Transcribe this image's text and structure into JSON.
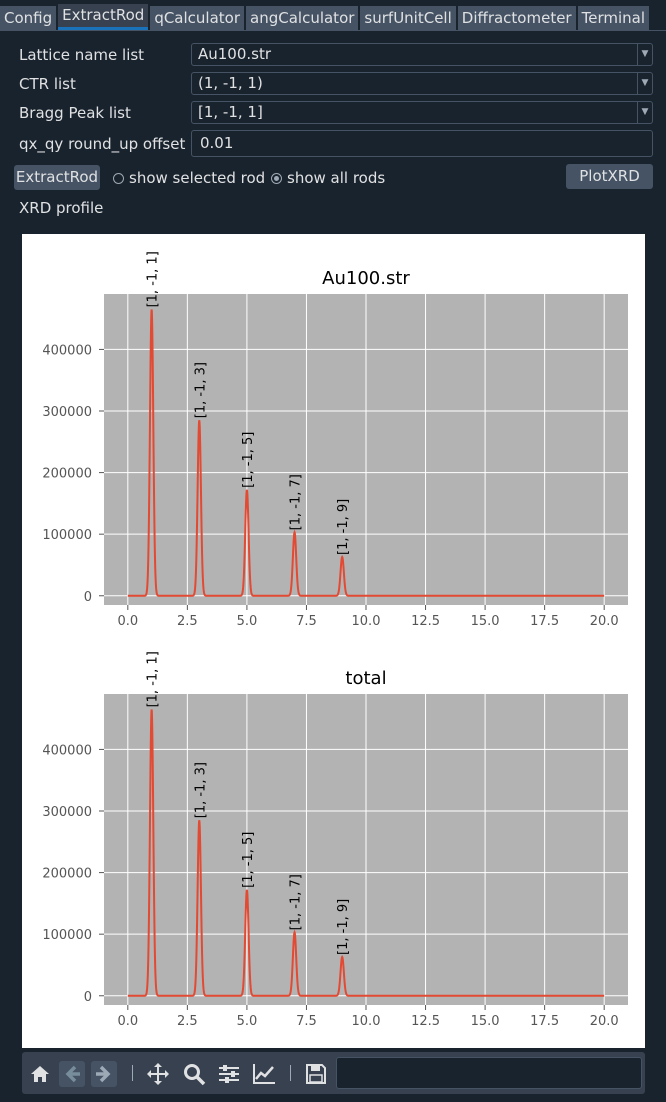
{
  "tabs": [
    "Config",
    "ExtractRod",
    "qCalculator",
    "angCalculator",
    "surfUnitCell",
    "Diffractometer",
    "Terminal"
  ],
  "active_tab": "ExtractRod",
  "form": {
    "lattice_label": "Lattice name list",
    "lattice_value": "Au100.str",
    "ctr_label": "CTR  list",
    "ctr_value": "(1, -1, 1)",
    "bragg_label": "Bragg Peak list",
    "bragg_value": "[1, -1, 1]",
    "offset_label": "qx_qy round_up offset",
    "offset_value": "0.01"
  },
  "controls": {
    "extract_button": "ExtractRod",
    "radio_selected": "show selected rod",
    "radio_all": "show all rods",
    "radio_checked": "show all rods",
    "plot_button": "PlotXRD"
  },
  "section_label": "XRD profile",
  "toolbar_icons": [
    "home-icon",
    "back-arrow-icon",
    "forward-arrow-icon",
    "pan-icon",
    "zoom-icon",
    "configure-subplots-icon",
    "edit-axis-icon",
    "save-icon"
  ],
  "colors": {
    "background": "#19232d",
    "tab_active_underline": "#1a72bb",
    "plot_bg": "#b3b3b3",
    "line": "#e24a33"
  },
  "chart_data": [
    {
      "type": "line",
      "title": "Au100.str",
      "xlim": [
        -1,
        21
      ],
      "ylim": [
        -15000,
        490000
      ],
      "xticks": [
        "0.0",
        "2.5",
        "5.0",
        "7.5",
        "10.0",
        "12.5",
        "15.0",
        "17.5",
        "20.0"
      ],
      "yticks": [
        "0",
        "100000",
        "200000",
        "300000",
        "400000"
      ],
      "grid": true,
      "peaks": [
        {
          "x": 1,
          "y": 465000,
          "label": "[1, -1, 1]"
        },
        {
          "x": 3,
          "y": 285000,
          "label": "[1, -1, 3]"
        },
        {
          "x": 5,
          "y": 172000,
          "label": "[1, -1, 5]"
        },
        {
          "x": 7,
          "y": 103000,
          "label": "[1, -1, 7]"
        },
        {
          "x": 9,
          "y": 63000,
          "label": "[1, -1, 9]"
        }
      ]
    },
    {
      "type": "line",
      "title": "total",
      "xlim": [
        -1,
        21
      ],
      "ylim": [
        -15000,
        490000
      ],
      "xticks": [
        "0.0",
        "2.5",
        "5.0",
        "7.5",
        "10.0",
        "12.5",
        "15.0",
        "17.5",
        "20.0"
      ],
      "yticks": [
        "0",
        "100000",
        "200000",
        "300000",
        "400000"
      ],
      "grid": true,
      "peaks": [
        {
          "x": 1,
          "y": 465000,
          "label": "[1, -1, 1]"
        },
        {
          "x": 3,
          "y": 285000,
          "label": "[1, -1, 3]"
        },
        {
          "x": 5,
          "y": 172000,
          "label": "[1, -1, 5]"
        },
        {
          "x": 7,
          "y": 103000,
          "label": "[1, -1, 7]"
        },
        {
          "x": 9,
          "y": 63000,
          "label": "[1, -1, 9]"
        }
      ]
    }
  ]
}
